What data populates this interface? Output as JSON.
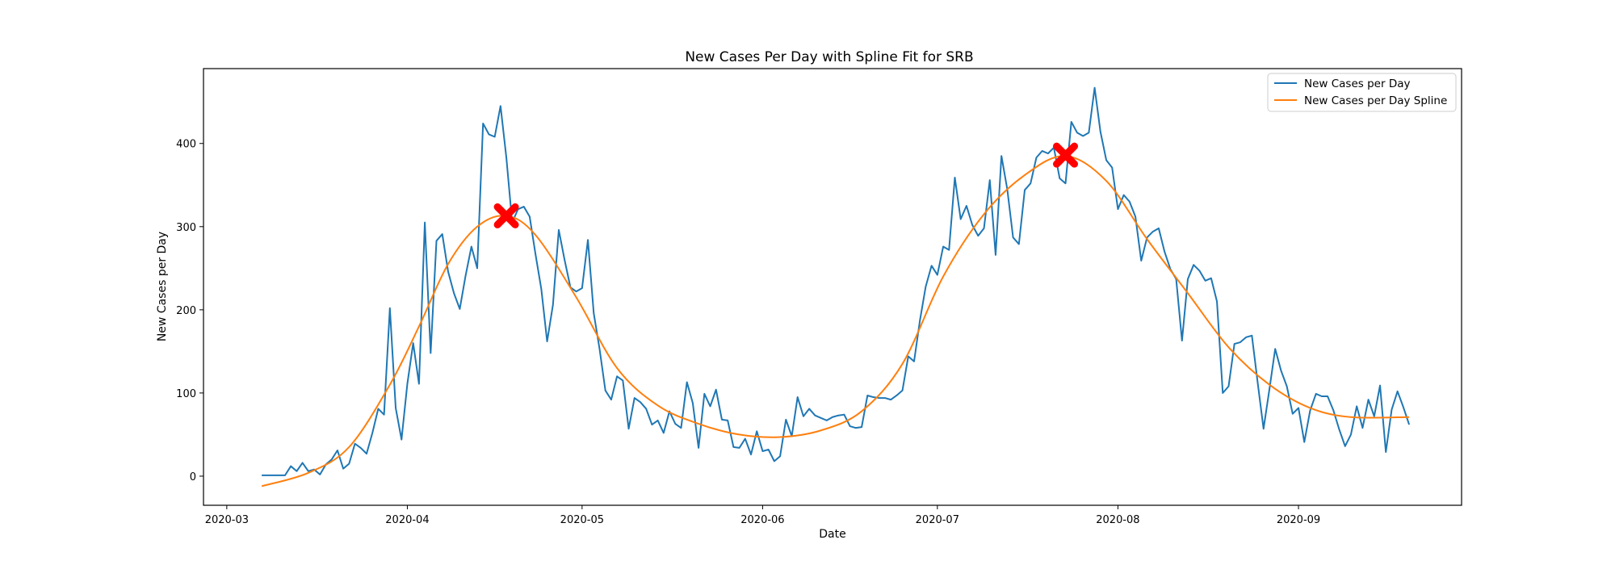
{
  "chart_data": {
    "type": "line",
    "title": "New Cases Per Day with Spline Fit for SRB",
    "xlabel": "Date",
    "ylabel": "New Cases per Day",
    "xlim": [
      "2020-02-26",
      "2020-09-29"
    ],
    "ylim": [
      -35,
      490
    ],
    "x_ticks": [
      "2020-03",
      "2020-04",
      "2020-05",
      "2020-06",
      "2020-07",
      "2020-08",
      "2020-09"
    ],
    "y_ticks": [
      0,
      100,
      200,
      300,
      400
    ],
    "grid": false,
    "legend_position": "top-right",
    "series": [
      {
        "name": "New Cases per Day",
        "color": "#1f77b4",
        "x_start": "2020-03-07",
        "values": [
          1,
          1,
          1,
          1,
          1,
          12,
          6,
          16,
          6,
          8,
          2,
          14,
          20,
          31,
          9,
          15,
          39,
          34,
          27,
          52,
          81,
          74,
          202,
          82,
          44,
          111,
          160,
          111,
          305,
          148,
          283,
          291,
          246,
          220,
          201,
          241,
          276,
          250,
          424,
          411,
          408,
          445,
          383,
          305,
          321,
          324,
          312,
          267,
          225,
          162,
          206,
          296,
          260,
          227,
          222,
          226,
          284,
          196,
          153,
          103,
          92,
          120,
          115,
          57,
          94,
          89,
          81,
          62,
          67,
          52,
          78,
          63,
          58,
          113,
          88,
          34,
          99,
          84,
          104,
          68,
          67,
          35,
          34,
          45,
          26,
          54,
          30,
          32,
          18,
          24,
          68,
          48,
          95,
          72,
          81,
          73,
          70,
          67,
          71,
          73,
          74,
          60,
          58,
          59,
          97,
          95,
          94,
          94,
          92,
          97,
          103,
          144,
          138,
          187,
          228,
          253,
          242,
          276,
          272,
          359,
          309,
          325,
          302,
          289,
          298,
          356,
          266,
          385,
          345,
          287,
          279,
          344,
          352,
          383,
          391,
          388,
          395,
          358,
          352,
          426,
          413,
          409,
          413,
          467,
          414,
          380,
          371,
          321,
          338,
          330,
          312,
          259,
          287,
          294,
          298,
          270,
          249,
          237,
          163,
          237,
          254,
          247,
          235,
          238,
          210,
          100,
          108,
          159,
          161,
          167,
          169,
          112,
          57,
          104,
          153,
          127,
          108,
          75,
          82,
          41,
          79,
          99,
          96,
          96,
          79,
          56,
          36,
          50,
          84,
          58,
          92,
          72,
          109,
          29,
          80,
          102,
          83,
          62
        ]
      },
      {
        "name": "New Cases per Day Spline",
        "color": "#ff7f0e",
        "knots": [
          {
            "x": "2020-03-07",
            "y": -12
          },
          {
            "x": "2020-03-15",
            "y": 4
          },
          {
            "x": "2020-03-22",
            "y": 35
          },
          {
            "x": "2020-03-29",
            "y": 110
          },
          {
            "x": "2020-04-03",
            "y": 180
          },
          {
            "x": "2020-04-08",
            "y": 255
          },
          {
            "x": "2020-04-13",
            "y": 300
          },
          {
            "x": "2020-04-18",
            "y": 313
          },
          {
            "x": "2020-04-23",
            "y": 290
          },
          {
            "x": "2020-04-30",
            "y": 215
          },
          {
            "x": "2020-05-07",
            "y": 130
          },
          {
            "x": "2020-05-14",
            "y": 85
          },
          {
            "x": "2020-05-21",
            "y": 63
          },
          {
            "x": "2020-05-28",
            "y": 50
          },
          {
            "x": "2020-06-04",
            "y": 47
          },
          {
            "x": "2020-06-11",
            "y": 55
          },
          {
            "x": "2020-06-18",
            "y": 78
          },
          {
            "x": "2020-06-25",
            "y": 135
          },
          {
            "x": "2020-07-02",
            "y": 240
          },
          {
            "x": "2020-07-09",
            "y": 315
          },
          {
            "x": "2020-07-16",
            "y": 362
          },
          {
            "x": "2020-07-23",
            "y": 385
          },
          {
            "x": "2020-07-30",
            "y": 355
          },
          {
            "x": "2020-08-06",
            "y": 285
          },
          {
            "x": "2020-08-13",
            "y": 220
          },
          {
            "x": "2020-08-20",
            "y": 155
          },
          {
            "x": "2020-08-27",
            "y": 110
          },
          {
            "x": "2020-09-03",
            "y": 82
          },
          {
            "x": "2020-09-10",
            "y": 71
          },
          {
            "x": "2020-09-20",
            "y": 71
          }
        ]
      }
    ],
    "markers": [
      {
        "x": "2020-04-18",
        "y": 313,
        "color": "#ff0000",
        "symbol": "X"
      },
      {
        "x": "2020-07-23",
        "y": 386,
        "color": "#ff0000",
        "symbol": "X"
      }
    ]
  }
}
